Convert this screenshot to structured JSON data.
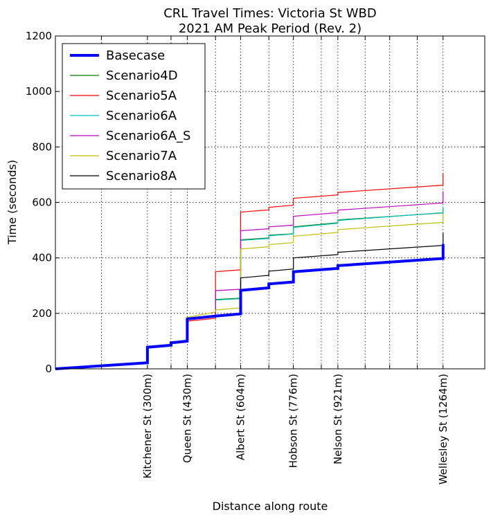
{
  "chart_data": {
    "type": "line",
    "title": [
      "CRL Travel Times: Victoria St WBD",
      "2021 AM Peak Period (Rev. 2)"
    ],
    "xlabel": "Distance along route",
    "ylabel": "Time (seconds)",
    "xlim": [
      0,
      1400
    ],
    "ylim": [
      0,
      1200
    ],
    "yticks": [
      0,
      200,
      400,
      600,
      800,
      1000,
      1200
    ],
    "xgrid": [
      150,
      300,
      377,
      430,
      522,
      604,
      696,
      776,
      867,
      921,
      1010,
      1090,
      1180,
      1264
    ],
    "xticks": [
      {
        "x": 300,
        "label": "Kitchener St (300m)"
      },
      {
        "x": 430,
        "label": "Queen St (430m)"
      },
      {
        "x": 604,
        "label": "Albert St (604m)"
      },
      {
        "x": 776,
        "label": "Hobson St (776m)"
      },
      {
        "x": 921,
        "label": "Nelson St (921m)"
      },
      {
        "x": 1264,
        "label": "Wellesley St (1264m)"
      }
    ],
    "legend_position": "top-left",
    "series": [
      {
        "name": "Basecase",
        "color": "#0000ff",
        "width": 4,
        "points": [
          [
            0,
            0
          ],
          [
            300,
            22
          ],
          [
            300,
            78
          ],
          [
            377,
            85
          ],
          [
            377,
            94
          ],
          [
            430,
            100
          ],
          [
            430,
            180
          ],
          [
            522,
            190
          ],
          [
            604,
            198
          ],
          [
            604,
            283
          ],
          [
            696,
            292
          ],
          [
            696,
            306
          ],
          [
            776,
            313
          ],
          [
            776,
            350
          ],
          [
            921,
            362
          ],
          [
            921,
            372
          ],
          [
            1264,
            398
          ],
          [
            1264,
            450
          ]
        ]
      },
      {
        "name": "Scenario4D",
        "color": "#008000",
        "width": 1.2,
        "points": [
          [
            0,
            0
          ],
          [
            300,
            22
          ],
          [
            300,
            78
          ],
          [
            377,
            85
          ],
          [
            377,
            94
          ],
          [
            430,
            100
          ],
          [
            430,
            180
          ],
          [
            522,
            190
          ],
          [
            522,
            250
          ],
          [
            604,
            255
          ],
          [
            604,
            465
          ],
          [
            696,
            472
          ],
          [
            696,
            482
          ],
          [
            776,
            487
          ],
          [
            776,
            512
          ],
          [
            921,
            527
          ],
          [
            921,
            537
          ],
          [
            1264,
            562
          ],
          [
            1264,
            580
          ]
        ]
      },
      {
        "name": "Scenario5A",
        "color": "#ff0000",
        "width": 1.2,
        "points": [
          [
            0,
            0
          ],
          [
            300,
            20
          ],
          [
            300,
            74
          ],
          [
            377,
            82
          ],
          [
            377,
            90
          ],
          [
            430,
            96
          ],
          [
            430,
            172
          ],
          [
            522,
            182
          ],
          [
            522,
            350
          ],
          [
            604,
            357
          ],
          [
            604,
            565
          ],
          [
            696,
            573
          ],
          [
            696,
            582
          ],
          [
            776,
            590
          ],
          [
            776,
            615
          ],
          [
            921,
            627
          ],
          [
            921,
            636
          ],
          [
            1264,
            662
          ],
          [
            1264,
            705
          ]
        ]
      },
      {
        "name": "Scenario6A",
        "color": "#00bfbf",
        "width": 1.2,
        "points": [
          [
            0,
            0
          ],
          [
            300,
            22
          ],
          [
            300,
            78
          ],
          [
            377,
            85
          ],
          [
            377,
            94
          ],
          [
            430,
            100
          ],
          [
            430,
            180
          ],
          [
            522,
            190
          ],
          [
            522,
            248
          ],
          [
            604,
            253
          ],
          [
            604,
            463
          ],
          [
            696,
            470
          ],
          [
            696,
            480
          ],
          [
            776,
            486
          ],
          [
            776,
            510
          ],
          [
            921,
            525
          ],
          [
            921,
            535
          ],
          [
            1264,
            563
          ],
          [
            1264,
            585
          ]
        ]
      },
      {
        "name": "Scenario6A_S",
        "color": "#bf00bf",
        "width": 1.2,
        "points": [
          [
            0,
            0
          ],
          [
            300,
            22
          ],
          [
            300,
            78
          ],
          [
            377,
            85
          ],
          [
            377,
            94
          ],
          [
            430,
            100
          ],
          [
            430,
            180
          ],
          [
            522,
            190
          ],
          [
            522,
            282
          ],
          [
            604,
            287
          ],
          [
            604,
            498
          ],
          [
            696,
            505
          ],
          [
            696,
            512
          ],
          [
            776,
            518
          ],
          [
            776,
            550
          ],
          [
            921,
            563
          ],
          [
            921,
            572
          ],
          [
            1264,
            598
          ],
          [
            1264,
            640
          ]
        ]
      },
      {
        "name": "Scenario7A",
        "color": "#bfbf00",
        "width": 1.2,
        "points": [
          [
            0,
            0
          ],
          [
            300,
            22
          ],
          [
            300,
            78
          ],
          [
            377,
            85
          ],
          [
            377,
            94
          ],
          [
            430,
            100
          ],
          [
            430,
            185
          ],
          [
            522,
            205
          ],
          [
            522,
            212
          ],
          [
            604,
            220
          ],
          [
            604,
            432
          ],
          [
            696,
            440
          ],
          [
            696,
            448
          ],
          [
            776,
            455
          ],
          [
            776,
            478
          ],
          [
            921,
            492
          ],
          [
            921,
            502
          ],
          [
            1264,
            528
          ],
          [
            1264,
            560
          ]
        ]
      },
      {
        "name": "Scenario8A",
        "color": "#000000",
        "width": 1.2,
        "points": [
          [
            0,
            0
          ],
          [
            300,
            22
          ],
          [
            300,
            78
          ],
          [
            377,
            85
          ],
          [
            377,
            94
          ],
          [
            430,
            100
          ],
          [
            430,
            182
          ],
          [
            522,
            192
          ],
          [
            604,
            200
          ],
          [
            604,
            328
          ],
          [
            696,
            337
          ],
          [
            696,
            352
          ],
          [
            776,
            360
          ],
          [
            776,
            400
          ],
          [
            921,
            412
          ],
          [
            921,
            420
          ],
          [
            1264,
            445
          ],
          [
            1264,
            490
          ]
        ]
      }
    ]
  }
}
